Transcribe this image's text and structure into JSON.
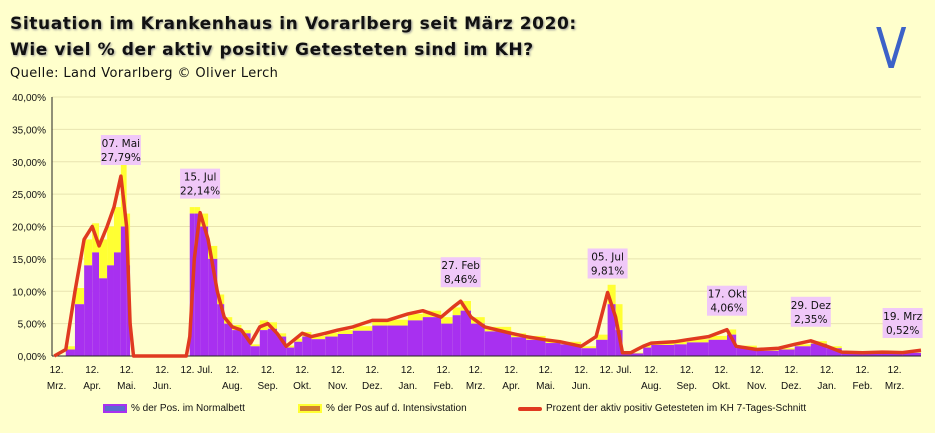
{
  "title_line1": "Situation im Krankenhaus in Vorarlberg seit März 2020:",
  "title_line2": "Wie viel % der aktiv positiv Getesteten sind im KH?",
  "source": "Quelle: Land Vorarlberg  © Oliver Lerch",
  "logo_text": "V",
  "colors": {
    "background": "#FFFFCC",
    "normal": "#A830F0",
    "icu": "#FFFF33",
    "line": "#E03A20",
    "annotation_bg": "#F0C8F8",
    "logo": "#3C62C8"
  },
  "chart_data": {
    "type": "bar+line",
    "title": "Situation im Krankenhaus in Vorarlberg seit März 2020: Wie viel % der aktiv positiv Getesteten sind im KH?",
    "ylim": [
      0,
      40
    ],
    "xlim": [
      "2020-03-08",
      "2022-04-04"
    ],
    "grid": true,
    "legend_position": "bottom",
    "y_ticks": [
      "0,00%",
      "5,00%",
      "10,00%",
      "15,00%",
      "20,00%",
      "25,00%",
      "30,00%",
      "35,00%",
      "40,00%"
    ],
    "x_ticks": [
      {
        "date": "2020-03-12",
        "day": "12.",
        "month": "Mrz."
      },
      {
        "date": "2020-04-12",
        "day": "12.",
        "month": "Apr."
      },
      {
        "date": "2020-05-12",
        "day": "12.",
        "month": "Mai."
      },
      {
        "date": "2020-06-12",
        "day": "12.",
        "month": "Jun."
      },
      {
        "date": "2020-07-12",
        "day": "12. Jul.",
        "month": ""
      },
      {
        "date": "2020-08-12",
        "day": "12.",
        "month": "Aug."
      },
      {
        "date": "2020-09-12",
        "day": "12.",
        "month": "Sep."
      },
      {
        "date": "2020-10-12",
        "day": "12.",
        "month": "Okt."
      },
      {
        "date": "2020-11-12",
        "day": "12.",
        "month": "Nov."
      },
      {
        "date": "2020-12-12",
        "day": "12.",
        "month": "Dez."
      },
      {
        "date": "2021-01-12",
        "day": "12.",
        "month": "Jan."
      },
      {
        "date": "2021-02-12",
        "day": "12.",
        "month": "Feb."
      },
      {
        "date": "2021-03-12",
        "day": "12.",
        "month": "Mrz."
      },
      {
        "date": "2021-04-12",
        "day": "12.",
        "month": "Apr."
      },
      {
        "date": "2021-05-12",
        "day": "12.",
        "month": "Mai."
      },
      {
        "date": "2021-06-12",
        "day": "12.",
        "month": "Jun."
      },
      {
        "date": "2021-07-12",
        "day": "12. Jul.",
        "month": ""
      },
      {
        "date": "2021-08-12",
        "day": "12.",
        "month": "Aug."
      },
      {
        "date": "2021-09-12",
        "day": "12.",
        "month": "Sep."
      },
      {
        "date": "2021-10-12",
        "day": "12.",
        "month": "Okt."
      },
      {
        "date": "2021-11-12",
        "day": "12.",
        "month": "Nov."
      },
      {
        "date": "2021-12-12",
        "day": "12.",
        "month": "Dez."
      },
      {
        "date": "2022-01-12",
        "day": "12.",
        "month": "Jan."
      },
      {
        "date": "2022-02-12",
        "day": "12.",
        "month": "Feb."
      },
      {
        "date": "2022-03-12",
        "day": "12.",
        "month": "Mrz."
      }
    ],
    "series": [
      {
        "name": "% der Pos.  im Normalbett",
        "type": "bar"
      },
      {
        "name": "% der Pos auf d. Intensivstation",
        "type": "bar"
      },
      {
        "name": "Prozent der aktiv positiv Getesteten im KH 7-Tages-Schnitt",
        "type": "line"
      }
    ],
    "points_columns": [
      "date",
      "line_7day",
      "normal",
      "icu"
    ],
    "points": [
      [
        "2020-03-10",
        0,
        0,
        0
      ],
      [
        "2020-03-20",
        1,
        1,
        0.5
      ],
      [
        "2020-03-28",
        10,
        8,
        2.5
      ],
      [
        "2020-04-05",
        18,
        14,
        4
      ],
      [
        "2020-04-12",
        20,
        16,
        4.5
      ],
      [
        "2020-04-18",
        17,
        12,
        6
      ],
      [
        "2020-04-25",
        20,
        14,
        6
      ],
      [
        "2020-05-01",
        23,
        16,
        7
      ],
      [
        "2020-05-07",
        27.79,
        20,
        12
      ],
      [
        "2020-05-12",
        20,
        14,
        8
      ],
      [
        "2020-05-15",
        5,
        0,
        0
      ],
      [
        "2020-05-18",
        0,
        0,
        0
      ],
      [
        "2020-07-03",
        0,
        0,
        0
      ],
      [
        "2020-07-06",
        3,
        22,
        1
      ],
      [
        "2020-07-10",
        15,
        22,
        1
      ],
      [
        "2020-07-15",
        22.14,
        20,
        2
      ],
      [
        "2020-07-22",
        18,
        15,
        2
      ],
      [
        "2020-07-30",
        10,
        8,
        1.5
      ],
      [
        "2020-08-05",
        6,
        5,
        1
      ],
      [
        "2020-08-12",
        4.5,
        4,
        0.8
      ],
      [
        "2020-08-20",
        4,
        3.5,
        0.5
      ],
      [
        "2020-08-28",
        2,
        1.5,
        0.3
      ],
      [
        "2020-09-05",
        4.5,
        4,
        1.5
      ],
      [
        "2020-09-12",
        5,
        4.2,
        1
      ],
      [
        "2020-09-20",
        3.5,
        3,
        0.5
      ],
      [
        "2020-09-28",
        1.5,
        1.3,
        0.3
      ],
      [
        "2020-10-05",
        2.5,
        2.2,
        0.5
      ],
      [
        "2020-10-12",
        3.5,
        3,
        0.7
      ],
      [
        "2020-10-20",
        3,
        2.6,
        0.5
      ],
      [
        "2020-11-01",
        3.5,
        3,
        0.6
      ],
      [
        "2020-11-12",
        4,
        3.4,
        0.6
      ],
      [
        "2020-11-25",
        4.5,
        3.9,
        0.7
      ],
      [
        "2020-12-12",
        5.5,
        4.7,
        0.8
      ],
      [
        "2020-12-25",
        5.5,
        4.7,
        0.9
      ],
      [
        "2021-01-12",
        6.5,
        5.5,
        1
      ],
      [
        "2021-01-25",
        7,
        6,
        1
      ],
      [
        "2021-02-10",
        6,
        5,
        1
      ],
      [
        "2021-02-20",
        7.5,
        6.3,
        1.2
      ],
      [
        "2021-02-27",
        8.46,
        7,
        1.5
      ],
      [
        "2021-03-08",
        6,
        5,
        1
      ],
      [
        "2021-03-20",
        4.5,
        3.8,
        0.7
      ],
      [
        "2021-04-12",
        3.5,
        2.9,
        0.6
      ],
      [
        "2021-04-25",
        3,
        2.5,
        0.6
      ],
      [
        "2021-05-12",
        2.5,
        2,
        0.5
      ],
      [
        "2021-05-25",
        2.2,
        1.8,
        0.4
      ],
      [
        "2021-06-12",
        1.5,
        1.2,
        0.3
      ],
      [
        "2021-06-25",
        3,
        2.5,
        0.8
      ],
      [
        "2021-07-05",
        9.81,
        8,
        3
      ],
      [
        "2021-07-12",
        6,
        4,
        4
      ],
      [
        "2021-07-18",
        0.5,
        0.4,
        0.1
      ],
      [
        "2021-07-25",
        0.5,
        0.4,
        0.1
      ],
      [
        "2021-08-05",
        1.5,
        1.3,
        0.3
      ],
      [
        "2021-08-12",
        2,
        1.7,
        0.4
      ],
      [
        "2021-09-01",
        2.2,
        1.8,
        0.4
      ],
      [
        "2021-09-12",
        2.5,
        2.1,
        0.5
      ],
      [
        "2021-10-01",
        3,
        2.5,
        0.6
      ],
      [
        "2021-10-17",
        4.06,
        3.3,
        0.8
      ],
      [
        "2021-10-25",
        1.5,
        1.3,
        0.3
      ],
      [
        "2021-11-12",
        1,
        0.8,
        0.2
      ],
      [
        "2021-12-01",
        1.2,
        1,
        0.2
      ],
      [
        "2021-12-15",
        1.8,
        1.5,
        0.3
      ],
      [
        "2021-12-29",
        2.35,
        1.9,
        0.4
      ],
      [
        "2022-01-12",
        1.5,
        1.2,
        0.3
      ],
      [
        "2022-01-25",
        0.6,
        0.5,
        0.1
      ],
      [
        "2022-02-12",
        0.5,
        0.4,
        0.1
      ],
      [
        "2022-03-01",
        0.6,
        0.5,
        0.1
      ],
      [
        "2022-03-19",
        0.52,
        0.5,
        0.1
      ],
      [
        "2022-04-04",
        0.9,
        0.8,
        0.1
      ]
    ],
    "annotations": [
      {
        "date": "2020-05-07",
        "label1": "07. Mai",
        "label2": "27,79%",
        "value": 27.79
      },
      {
        "date": "2020-07-15",
        "label1": "15. Jul",
        "label2": "22,14%",
        "value": 22.14
      },
      {
        "date": "2021-02-27",
        "label1": "27. Feb",
        "label2": "8,46%",
        "value": 8.46
      },
      {
        "date": "2021-07-05",
        "label1": "05. Jul",
        "label2": "9,81%",
        "value": 9.81
      },
      {
        "date": "2021-10-17",
        "label1": "17. Okt",
        "label2": "4,06%",
        "value": 4.06
      },
      {
        "date": "2021-12-29",
        "label1": "29. Dez",
        "label2": "2,35%",
        "value": 2.35
      },
      {
        "date": "2022-03-19",
        "label1": "19. Mrz",
        "label2": "0,52%",
        "value": 0.52
      }
    ]
  },
  "legend": {
    "normal": "% der Pos.  im Normalbett",
    "icu": "% der Pos auf d. Intensivstation",
    "line": "Prozent der aktiv positiv Getesteten im KH 7-Tages-Schnitt"
  }
}
